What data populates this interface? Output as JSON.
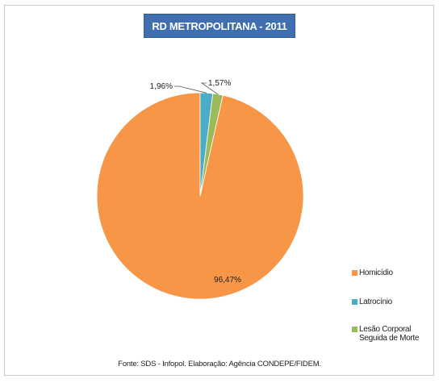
{
  "chart_data": {
    "type": "pie",
    "title": "RD METROPOLITANA - 2011",
    "categories": [
      "Homicídio",
      "Latrocínio",
      "Lesão Corporal Seguida de Morte"
    ],
    "values": [
      96.47,
      1.96,
      1.57
    ],
    "data_labels": [
      "96,47%",
      "1,96%",
      "1,57%"
    ],
    "colors": [
      "#f79646",
      "#4bacc6",
      "#9bbb59"
    ],
    "legend_position": "right",
    "legend": [
      "Homicídio",
      "Latrocínio",
      "Lesão Corporal\nSeguida de Morte"
    ]
  },
  "footer": "Fonte: SDS - Infopol. Elaboração: Agência CONDEPE/FIDEM."
}
